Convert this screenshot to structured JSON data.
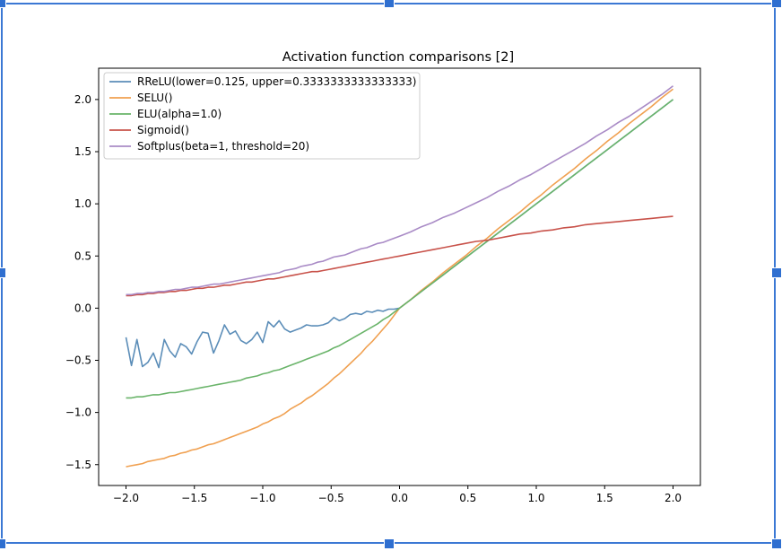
{
  "chart_data": {
    "type": "line",
    "title": "Activation function comparisons [2]",
    "xlabel": "",
    "ylabel": "",
    "xlim": [
      -2.2,
      2.2
    ],
    "ylim": [
      -1.7,
      2.3
    ],
    "xticks": [
      -2.0,
      -1.5,
      -1.0,
      -0.5,
      0.0,
      0.5,
      1.0,
      1.5,
      2.0
    ],
    "xtick_labels": [
      "−2.0",
      "−1.5",
      "−1.0",
      "−0.5",
      "0.0",
      "0.5",
      "1.0",
      "1.5",
      "2.0"
    ],
    "yticks": [
      -1.5,
      -1.0,
      -0.5,
      0.0,
      0.5,
      1.0,
      1.5,
      2.0
    ],
    "ytick_labels": [
      "−1.5",
      "−1.0",
      "−0.5",
      "0.0",
      "0.5",
      "1.0",
      "1.5",
      "2.0"
    ],
    "grid": false,
    "legend_position": "top-left",
    "x": [
      -2.0,
      -1.96,
      -1.92,
      -1.88,
      -1.84,
      -1.8,
      -1.76,
      -1.72,
      -1.68,
      -1.64,
      -1.6,
      -1.56,
      -1.52,
      -1.48,
      -1.44,
      -1.4,
      -1.36,
      -1.32,
      -1.28,
      -1.24,
      -1.2,
      -1.16,
      -1.12,
      -1.08,
      -1.04,
      -1.0,
      -0.96,
      -0.92,
      -0.88,
      -0.84,
      -0.8,
      -0.76,
      -0.72,
      -0.68,
      -0.64,
      -0.6,
      -0.56,
      -0.52,
      -0.48,
      -0.44,
      -0.4,
      -0.36,
      -0.32,
      -0.28,
      -0.24,
      -0.2,
      -0.16,
      -0.12,
      -0.08,
      -0.04,
      0.0,
      0.08,
      0.16,
      0.24,
      0.32,
      0.4,
      0.48,
      0.56,
      0.64,
      0.72,
      0.8,
      0.88,
      0.96,
      1.04,
      1.12,
      1.2,
      1.28,
      1.36,
      1.44,
      1.52,
      1.6,
      1.68,
      1.76,
      1.84,
      1.92,
      2.0
    ],
    "series": [
      {
        "name": "RReLU(lower=0.125, upper=0.3333333333333333)",
        "color": "#5b8db8",
        "values": [
          -0.28,
          -0.55,
          -0.3,
          -0.56,
          -0.52,
          -0.43,
          -0.57,
          -0.3,
          -0.41,
          -0.47,
          -0.34,
          -0.37,
          -0.44,
          -0.32,
          -0.23,
          -0.24,
          -0.43,
          -0.31,
          -0.16,
          -0.25,
          -0.22,
          -0.31,
          -0.34,
          -0.3,
          -0.23,
          -0.33,
          -0.13,
          -0.18,
          -0.12,
          -0.2,
          -0.23,
          -0.21,
          -0.19,
          -0.16,
          -0.17,
          -0.17,
          -0.16,
          -0.14,
          -0.09,
          -0.12,
          -0.1,
          -0.06,
          -0.05,
          -0.06,
          -0.03,
          -0.04,
          -0.02,
          -0.03,
          -0.01,
          -0.01,
          0.0,
          0.08,
          0.16,
          0.24,
          0.32,
          0.4,
          0.48,
          0.56,
          0.64,
          0.72,
          0.8,
          0.88,
          0.96,
          1.04,
          1.12,
          1.2,
          1.28,
          1.36,
          1.44,
          1.52,
          1.6,
          1.68,
          1.76,
          1.84,
          1.92,
          2.0
        ]
      },
      {
        "name": "SELU()",
        "color": "#f0a050",
        "values": [
          -1.52,
          -1.51,
          -1.5,
          -1.49,
          -1.47,
          -1.46,
          -1.45,
          -1.44,
          -1.42,
          -1.41,
          -1.39,
          -1.38,
          -1.36,
          -1.35,
          -1.33,
          -1.31,
          -1.3,
          -1.28,
          -1.26,
          -1.24,
          -1.22,
          -1.2,
          -1.18,
          -1.16,
          -1.14,
          -1.11,
          -1.09,
          -1.06,
          -1.04,
          -1.01,
          -0.97,
          -0.94,
          -0.91,
          -0.87,
          -0.84,
          -0.8,
          -0.76,
          -0.72,
          -0.67,
          -0.63,
          -0.58,
          -0.53,
          -0.48,
          -0.43,
          -0.37,
          -0.32,
          -0.26,
          -0.2,
          -0.14,
          -0.07,
          0.0,
          0.08,
          0.17,
          0.25,
          0.34,
          0.42,
          0.5,
          0.59,
          0.67,
          0.76,
          0.84,
          0.92,
          1.01,
          1.09,
          1.18,
          1.26,
          1.34,
          1.43,
          1.51,
          1.6,
          1.68,
          1.77,
          1.85,
          1.93,
          2.02,
          2.1
        ]
      },
      {
        "name": "ELU(alpha=1.0)",
        "color": "#6ab46a",
        "values": [
          -0.86,
          -0.86,
          -0.85,
          -0.85,
          -0.84,
          -0.83,
          -0.83,
          -0.82,
          -0.81,
          -0.81,
          -0.8,
          -0.79,
          -0.78,
          -0.77,
          -0.76,
          -0.75,
          -0.74,
          -0.73,
          -0.72,
          -0.71,
          -0.7,
          -0.69,
          -0.67,
          -0.66,
          -0.65,
          -0.63,
          -0.62,
          -0.6,
          -0.59,
          -0.57,
          -0.55,
          -0.53,
          -0.51,
          -0.49,
          -0.47,
          -0.45,
          -0.43,
          -0.41,
          -0.38,
          -0.36,
          -0.33,
          -0.3,
          -0.27,
          -0.24,
          -0.21,
          -0.18,
          -0.15,
          -0.11,
          -0.08,
          -0.04,
          0.0,
          0.08,
          0.16,
          0.24,
          0.32,
          0.4,
          0.48,
          0.56,
          0.64,
          0.72,
          0.8,
          0.88,
          0.96,
          1.04,
          1.12,
          1.2,
          1.28,
          1.36,
          1.44,
          1.52,
          1.6,
          1.68,
          1.76,
          1.84,
          1.92,
          2.0
        ]
      },
      {
        "name": "Sigmoid()",
        "color": "#c8524a",
        "values": [
          0.12,
          0.12,
          0.13,
          0.13,
          0.14,
          0.14,
          0.15,
          0.15,
          0.16,
          0.16,
          0.17,
          0.17,
          0.18,
          0.19,
          0.19,
          0.2,
          0.2,
          0.21,
          0.22,
          0.22,
          0.23,
          0.24,
          0.25,
          0.25,
          0.26,
          0.27,
          0.28,
          0.28,
          0.29,
          0.3,
          0.31,
          0.32,
          0.33,
          0.34,
          0.35,
          0.35,
          0.36,
          0.37,
          0.38,
          0.39,
          0.4,
          0.41,
          0.42,
          0.43,
          0.44,
          0.45,
          0.46,
          0.47,
          0.48,
          0.49,
          0.5,
          0.52,
          0.54,
          0.56,
          0.58,
          0.6,
          0.62,
          0.64,
          0.65,
          0.67,
          0.69,
          0.71,
          0.72,
          0.74,
          0.75,
          0.77,
          0.78,
          0.8,
          0.81,
          0.82,
          0.83,
          0.84,
          0.85,
          0.86,
          0.87,
          0.88
        ]
      },
      {
        "name": "Softplus(beta=1, threshold=20)",
        "color": "#a98bc6",
        "values": [
          0.13,
          0.13,
          0.14,
          0.14,
          0.15,
          0.15,
          0.16,
          0.16,
          0.17,
          0.18,
          0.18,
          0.19,
          0.2,
          0.2,
          0.21,
          0.22,
          0.23,
          0.23,
          0.24,
          0.25,
          0.26,
          0.27,
          0.28,
          0.29,
          0.3,
          0.31,
          0.32,
          0.33,
          0.34,
          0.36,
          0.37,
          0.38,
          0.4,
          0.41,
          0.42,
          0.44,
          0.45,
          0.47,
          0.49,
          0.5,
          0.51,
          0.53,
          0.55,
          0.57,
          0.58,
          0.6,
          0.62,
          0.63,
          0.65,
          0.67,
          0.69,
          0.73,
          0.78,
          0.82,
          0.87,
          0.91,
          0.96,
          1.01,
          1.06,
          1.12,
          1.17,
          1.23,
          1.28,
          1.34,
          1.4,
          1.46,
          1.52,
          1.58,
          1.65,
          1.71,
          1.78,
          1.84,
          1.91,
          1.98,
          2.05,
          2.13
        ]
      }
    ]
  }
}
